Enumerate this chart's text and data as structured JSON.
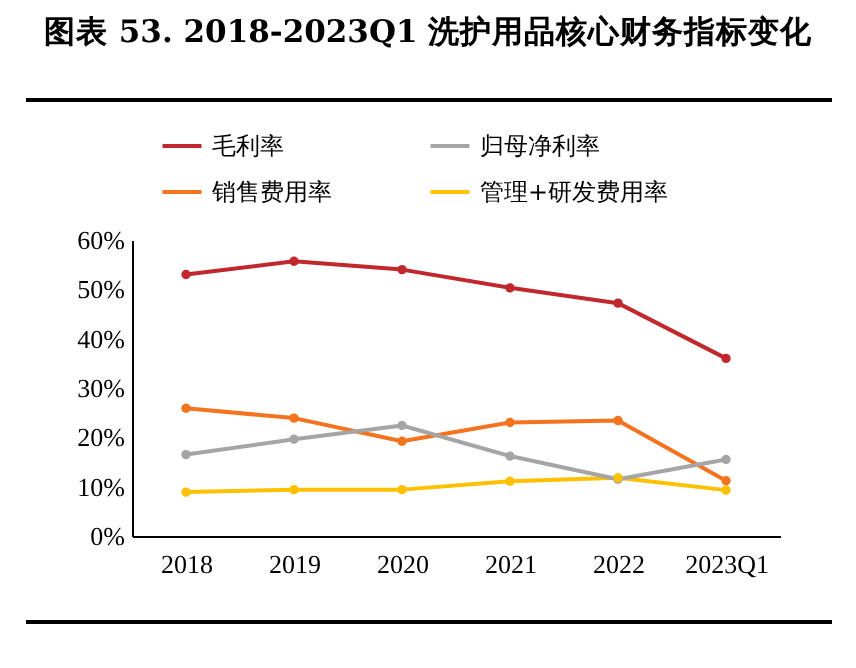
{
  "chart_data": {
    "type": "line",
    "title": "图表 53. 2018-2023Q1 洗护用品核心财务指标变化",
    "categories": [
      "2018",
      "2019",
      "2020",
      "2021",
      "2022",
      "2023Q1"
    ],
    "series": [
      {
        "name": "毛利率",
        "color": "#c0282e",
        "values": [
          53.0,
          55.7,
          54.0,
          50.3,
          47.2,
          36.0
        ]
      },
      {
        "name": "归母净利率",
        "color": "#a5a5a5",
        "values": [
          16.5,
          19.6,
          22.4,
          16.2,
          11.5,
          15.5
        ]
      },
      {
        "name": "销售费用率",
        "color": "#f4731f",
        "values": [
          25.9,
          23.9,
          19.2,
          23.0,
          23.4,
          11.2
        ]
      },
      {
        "name": "管理+研发费用率",
        "color": "#ffc000",
        "values": [
          8.9,
          9.4,
          9.4,
          11.1,
          11.8,
          9.3
        ]
      }
    ],
    "ylim": [
      0,
      60
    ],
    "yticks": [
      {
        "value": 0,
        "label": "0%"
      },
      {
        "value": 10,
        "label": "10%"
      },
      {
        "value": 20,
        "label": "20%"
      },
      {
        "value": 30,
        "label": "30%"
      },
      {
        "value": 40,
        "label": "40%"
      },
      {
        "value": 50,
        "label": "50%"
      },
      {
        "value": 60,
        "label": "60%"
      }
    ],
    "grid": false,
    "legend": "top",
    "marker": "circle"
  }
}
